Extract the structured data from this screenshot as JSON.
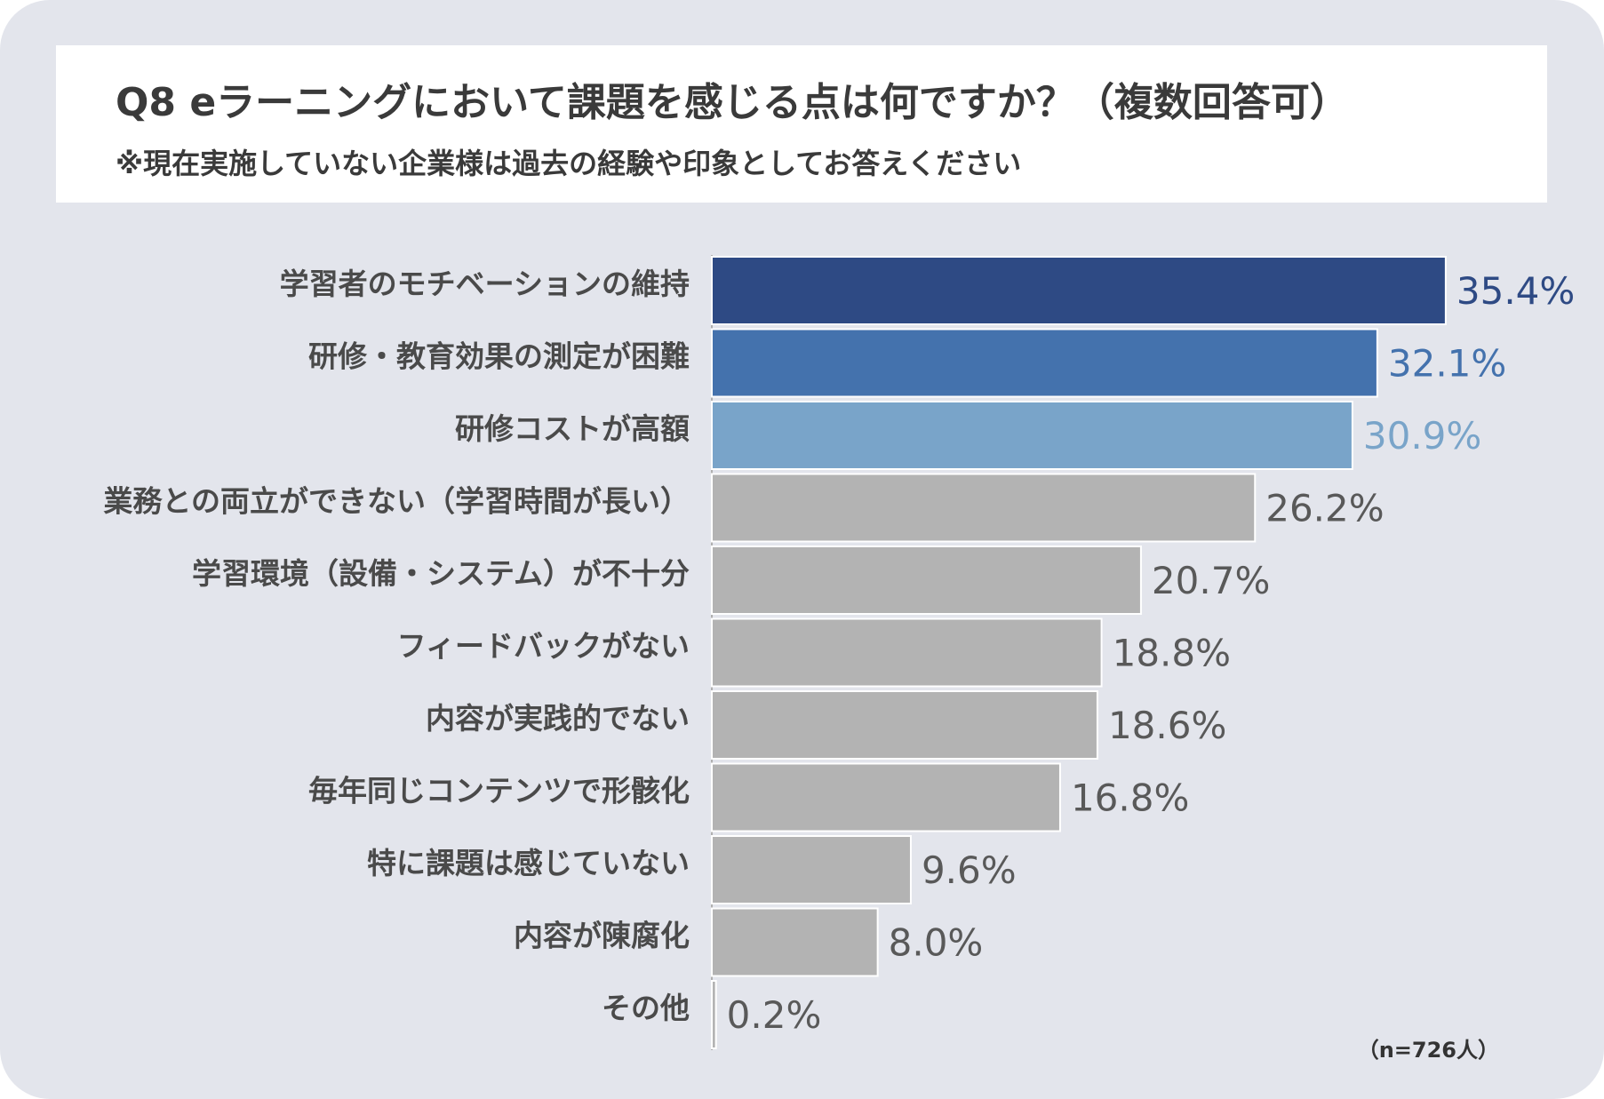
{
  "header": {
    "title": "Q8 eラーニングにおいて課題を感じる点は何ですか？（複数回答可）",
    "subtitle": "※現在実施していない企業様は過去の経験や印象としてお答えください"
  },
  "note": "（n=726人）",
  "colors": {
    "background": "#e3e5ec",
    "rank1": "#2e4a84",
    "rank2": "#4472ad",
    "rank3": "#79a4c9",
    "other": "#b3b3b3",
    "other_label": "#595959"
  },
  "chart_data": {
    "type": "bar",
    "orientation": "horizontal",
    "categories": [
      "学習者のモチベーションの維持",
      "研修・教育効果の測定が困難",
      "研修コストが高額",
      "業務との両立ができない（学習時間が長い）",
      "学習環境（設備・システム）が不十分",
      "フィードバックがない",
      "内容が実践的でない",
      "毎年同じコンテンツで形骸化",
      "特に課題は感じていない",
      "内容が陳腐化",
      "その他"
    ],
    "values": [
      35.4,
      32.1,
      30.9,
      26.2,
      20.7,
      18.8,
      18.6,
      16.8,
      9.6,
      8.0,
      0.2
    ],
    "value_labels": [
      "35.4%",
      "32.1%",
      "30.9%",
      "26.2%",
      "20.7%",
      "18.8%",
      "18.6%",
      "16.8%",
      "9.6%",
      "8.0%",
      "0.2%"
    ],
    "unit": "%",
    "xlim": [
      0,
      40
    ],
    "grid": false,
    "legend": "none"
  }
}
